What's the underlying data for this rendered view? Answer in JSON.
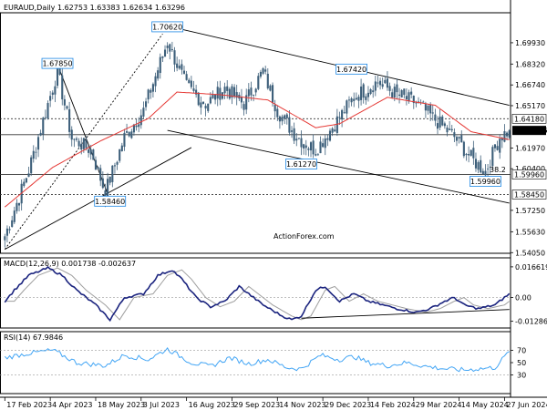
{
  "header": {
    "main": "EURAUD,Daily  1.62753 1.63383 1.62634 1.63296",
    "macd": "MACD(12,26,9) 0.001738 -0.002637",
    "rsi": "RSI(14) 67.9846"
  },
  "watermark": "ActionForex.com",
  "colors": {
    "candle": "#3d5f7a",
    "ma": "#e53935",
    "trend": "#000000",
    "macd_line": "#1a237e",
    "macd_signal": "#9e9e9e",
    "rsi_line": "#42a5f5",
    "callout_border": "#1e88e5"
  },
  "chart_data": [
    {
      "type": "candlestick",
      "instrument": "EURAUD",
      "timeframe": "Daily",
      "last_bar": {
        "open": 1.62753,
        "high": 1.63383,
        "low": 1.62634,
        "close": 1.63296
      },
      "ylim": [
        1.54,
        1.722
      ],
      "yticks": [
        "1.69930",
        "1.68320",
        "1.66740",
        "1.65170",
        "1.61970",
        "1.60400",
        "1.57250",
        "1.55630",
        "1.54050"
      ],
      "x_ticks": [
        "17 Feb 2023",
        "4 Apr 2023",
        "18 May 2023",
        "3 Jul 2023",
        "16 Aug 2023",
        "29 Sep 2023",
        "14 Nov 2023",
        "29 Dec 2023",
        "14 Feb 2024",
        "29 Mar 2024",
        "14 May 2024",
        "27 Jun 2024"
      ],
      "anchor_closes": [
        [
          0,
          1.553
        ],
        [
          10,
          1.603
        ],
        [
          22,
          1.678
        ],
        [
          28,
          1.627
        ],
        [
          36,
          1.618
        ],
        [
          42,
          1.586
        ],
        [
          50,
          1.628
        ],
        [
          58,
          1.648
        ],
        [
          68,
          1.7
        ],
        [
          76,
          1.666
        ],
        [
          84,
          1.653
        ],
        [
          92,
          1.665
        ],
        [
          100,
          1.653
        ],
        [
          108,
          1.678
        ],
        [
          114,
          1.648
        ],
        [
          122,
          1.628
        ],
        [
          130,
          1.618
        ],
        [
          138,
          1.638
        ],
        [
          146,
          1.658
        ],
        [
          156,
          1.67
        ],
        [
          164,
          1.66
        ],
        [
          172,
          1.654
        ],
        [
          180,
          1.641
        ],
        [
          188,
          1.628
        ],
        [
          196,
          1.61
        ],
        [
          201,
          1.602
        ],
        [
          207,
          1.628
        ],
        [
          211,
          1.633
        ]
      ],
      "ma_anchors": [
        [
          0,
          1.575
        ],
        [
          20,
          1.605
        ],
        [
          40,
          1.625
        ],
        [
          60,
          1.642
        ],
        [
          72,
          1.662
        ],
        [
          90,
          1.66
        ],
        [
          110,
          1.656
        ],
        [
          130,
          1.635
        ],
        [
          140,
          1.638
        ],
        [
          160,
          1.658
        ],
        [
          180,
          1.652
        ],
        [
          195,
          1.632
        ],
        [
          211,
          1.626
        ]
      ],
      "levels": [
        {
          "price": 1.6418,
          "label": "1.64180",
          "dashed": true
        },
        {
          "price": 1.5996,
          "label": "1.59960",
          "dashed": false
        },
        {
          "price": 1.5845,
          "label": "1.58450",
          "dashed": true
        },
        {
          "price": 1.62973,
          "label": "",
          "dashed": false
        }
      ],
      "current_price_label": "1.63296",
      "callouts": [
        {
          "label": "1.67850",
          "bar": 22,
          "price": 1.6785
        },
        {
          "label": "1.70620",
          "bar": 68,
          "price": 1.7062
        },
        {
          "label": "1.67420",
          "bar": 145,
          "price": 1.6742
        },
        {
          "label": "1.61270",
          "bar": 124,
          "price": 1.6127
        },
        {
          "label": "1.58460",
          "bar": 44,
          "price": 1.5846
        },
        {
          "label": "1.59960",
          "bar": 201,
          "price": 1.5996
        }
      ],
      "fib_label": "38.2",
      "trendlines": [
        {
          "from": [
            0,
            1.543
          ],
          "to": [
            78,
            1.62
          ],
          "dashed": false
        },
        {
          "from": [
            0,
            1.543
          ],
          "to": [
            66,
            1.706
          ],
          "dashed": true
        },
        {
          "from": [
            22,
            1.683
          ],
          "to": [
            43,
            1.585
          ],
          "dashed": false
        },
        {
          "from": [
            68,
            1.712
          ],
          "to": [
            211,
            1.652
          ],
          "dashed": false
        },
        {
          "from": [
            68,
            1.633
          ],
          "to": [
            211,
            1.578
          ],
          "dashed": false
        }
      ]
    },
    {
      "type": "line",
      "name": "MACD(12,26,9)",
      "ylim": [
        -0.0165,
        0.0215
      ],
      "yticks": [
        "0.016619",
        "0.00",
        "-0.012864"
      ],
      "zero": 0,
      "macd_anchors": [
        [
          0,
          -0.002
        ],
        [
          4,
          0.004
        ],
        [
          10,
          0.012
        ],
        [
          18,
          0.016
        ],
        [
          24,
          0.012
        ],
        [
          30,
          0.004
        ],
        [
          38,
          -0.004
        ],
        [
          44,
          -0.012
        ],
        [
          50,
          0.0
        ],
        [
          58,
          0.002
        ],
        [
          64,
          0.012
        ],
        [
          70,
          0.015
        ],
        [
          74,
          0.01
        ],
        [
          80,
          0.0
        ],
        [
          86,
          -0.005
        ],
        [
          92,
          -0.002
        ],
        [
          98,
          0.006
        ],
        [
          102,
          0.002
        ],
        [
          108,
          -0.004
        ],
        [
          116,
          -0.01
        ],
        [
          120,
          -0.012
        ],
        [
          124,
          -0.01
        ],
        [
          130,
          0.004
        ],
        [
          134,
          0.006
        ],
        [
          140,
          -0.002
        ],
        [
          146,
          0.002
        ],
        [
          152,
          -0.002
        ],
        [
          158,
          -0.004
        ],
        [
          164,
          -0.006
        ],
        [
          172,
          -0.008
        ],
        [
          178,
          -0.006
        ],
        [
          184,
          -0.002
        ],
        [
          188,
          0.0
        ],
        [
          192,
          -0.004
        ],
        [
          198,
          -0.006
        ],
        [
          205,
          -0.004
        ],
        [
          211,
          0.002
        ]
      ],
      "signal_lag": 4,
      "trendline": {
        "from": [
          124,
          -0.0112
        ],
        "to": [
          211,
          -0.0065
        ]
      }
    },
    {
      "type": "line",
      "name": "RSI(14)",
      "ylim": [
        0,
        100
      ],
      "yticks": [
        "70",
        "50",
        "30"
      ],
      "guides": [
        70,
        30
      ],
      "rsi_anchors": [
        [
          0,
          58
        ],
        [
          10,
          65
        ],
        [
          20,
          70
        ],
        [
          30,
          50
        ],
        [
          42,
          45
        ],
        [
          50,
          62
        ],
        [
          60,
          55
        ],
        [
          68,
          72
        ],
        [
          78,
          50
        ],
        [
          86,
          44
        ],
        [
          94,
          58
        ],
        [
          102,
          48
        ],
        [
          110,
          55
        ],
        [
          118,
          42
        ],
        [
          124,
          40
        ],
        [
          132,
          62
        ],
        [
          140,
          55
        ],
        [
          146,
          60
        ],
        [
          152,
          50
        ],
        [
          160,
          45
        ],
        [
          168,
          50
        ],
        [
          176,
          44
        ],
        [
          184,
          40
        ],
        [
          192,
          38
        ],
        [
          198,
          40
        ],
        [
          205,
          42
        ],
        [
          211,
          68
        ]
      ]
    }
  ]
}
